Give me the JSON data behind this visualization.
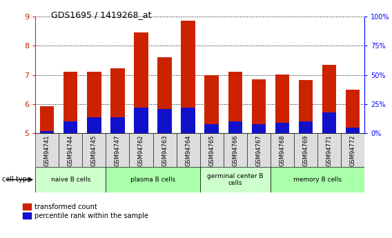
{
  "title": "GDS1695 / 1419268_at",
  "samples": [
    "GSM94741",
    "GSM94744",
    "GSM94745",
    "GSM94747",
    "GSM94762",
    "GSM94763",
    "GSM94764",
    "GSM94765",
    "GSM94766",
    "GSM94767",
    "GSM94768",
    "GSM94769",
    "GSM94771",
    "GSM94772"
  ],
  "transformed_count": [
    5.92,
    7.1,
    7.1,
    7.22,
    8.45,
    7.6,
    8.87,
    7.0,
    7.1,
    6.85,
    7.02,
    6.83,
    7.35,
    6.5
  ],
  "percentile_rank_pct": [
    2.0,
    10.0,
    14.0,
    14.0,
    22.0,
    21.0,
    22.0,
    8.0,
    10.0,
    8.0,
    9.0,
    10.0,
    18.0,
    5.0
  ],
  "ylim_left": [
    5,
    9
  ],
  "ylim_right": [
    0,
    100
  ],
  "bar_color_red": "#CC2200",
  "bar_color_blue": "#1111CC",
  "groups": [
    {
      "label": "naive B cells",
      "start": 0,
      "end": 3,
      "color": "#CCFFCC"
    },
    {
      "label": "plasma B cells",
      "start": 3,
      "end": 7,
      "color": "#AAFFAA"
    },
    {
      "label": "germinal center B\ncells",
      "start": 7,
      "end": 10,
      "color": "#CCFFCC"
    },
    {
      "label": "memory B cells",
      "start": 10,
      "end": 14,
      "color": "#AAFFAA"
    }
  ],
  "legend_red_label": "transformed count",
  "legend_blue_label": "percentile rank within the sample",
  "cell_type_label": "cell type",
  "background_color": "#FFFFFF",
  "tick_bg_color": "#DDDDDD",
  "bar_width": 0.6
}
